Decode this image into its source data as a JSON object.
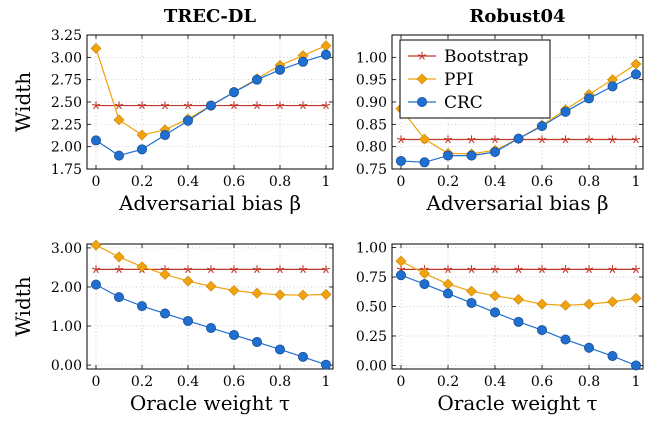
{
  "colors": {
    "bootstrap": "#c0392b",
    "ppi": "#f0a30a",
    "crc": "#1f6fd1",
    "grid": "#b9b9b9"
  },
  "legend": {
    "entries": [
      {
        "label": "Bootstrap",
        "series": "bootstrap",
        "marker": "star"
      },
      {
        "label": "PPI",
        "series": "ppi",
        "marker": "diamond"
      },
      {
        "label": "CRC",
        "series": "crc",
        "marker": "circle"
      }
    ]
  },
  "chart_data": [
    {
      "type": "line",
      "title": "TREC-DL",
      "xlabel": "Adversarial bias β",
      "ylabel": "Width",
      "xlim": [
        0,
        1
      ],
      "ylim": [
        1.75,
        3.25
      ],
      "xticks": [
        0,
        0.2,
        0.4,
        0.6,
        0.8,
        1
      ],
      "xtick_labels": [
        "0",
        "0.2",
        "0.4",
        "0.6",
        "0.8",
        "1"
      ],
      "yticks": [
        1.75,
        2.0,
        2.25,
        2.5,
        2.75,
        3.0,
        3.25
      ],
      "ytick_labels": [
        "1.75",
        "2.00",
        "2.25",
        "2.50",
        "2.75",
        "3.00",
        "3.25"
      ],
      "grid": "dotted",
      "x": [
        0,
        0.1,
        0.2,
        0.3,
        0.4,
        0.5,
        0.6,
        0.7,
        0.8,
        0.9,
        1.0
      ],
      "series": [
        {
          "name": "Bootstrap",
          "key": "bootstrap",
          "marker": "star",
          "values": [
            2.46,
            2.46,
            2.46,
            2.46,
            2.46,
            2.46,
            2.46,
            2.46,
            2.46,
            2.46,
            2.46
          ]
        },
        {
          "name": "PPI",
          "key": "ppi",
          "marker": "diamond",
          "values": [
            3.1,
            2.3,
            2.13,
            2.19,
            2.31,
            2.46,
            2.61,
            2.76,
            2.91,
            3.02,
            3.13
          ]
        },
        {
          "name": "CRC",
          "key": "crc",
          "marker": "circle",
          "values": [
            2.07,
            1.9,
            1.97,
            2.13,
            2.29,
            2.46,
            2.61,
            2.75,
            2.86,
            2.95,
            3.03
          ]
        }
      ]
    },
    {
      "type": "line",
      "title": "Robust04",
      "xlabel": "Adversarial bias β",
      "ylabel": "",
      "xlim": [
        0,
        1
      ],
      "ylim": [
        0.75,
        1.05
      ],
      "xticks": [
        0,
        0.2,
        0.4,
        0.6,
        0.8,
        1
      ],
      "xtick_labels": [
        "0",
        "0.2",
        "0.4",
        "0.6",
        "0.8",
        "1"
      ],
      "yticks": [
        0.75,
        0.8,
        0.85,
        0.9,
        0.95,
        1.0
      ],
      "ytick_labels": [
        "0.75",
        "0.80",
        "0.85",
        "0.90",
        "0.95",
        "1.00"
      ],
      "grid": "dotted",
      "legend": "top-left",
      "x": [
        0,
        0.1,
        0.2,
        0.3,
        0.4,
        0.5,
        0.6,
        0.7,
        0.8,
        0.9,
        1.0
      ],
      "series": [
        {
          "name": "Bootstrap",
          "key": "bootstrap",
          "marker": "star",
          "values": [
            0.816,
            0.816,
            0.816,
            0.816,
            0.816,
            0.816,
            0.816,
            0.816,
            0.816,
            0.816,
            0.816
          ]
        },
        {
          "name": "PPI",
          "key": "ppi",
          "marker": "diamond",
          "values": [
            0.885,
            0.817,
            0.785,
            0.784,
            0.792,
            0.818,
            0.848,
            0.883,
            0.917,
            0.95,
            0.985
          ]
        },
        {
          "name": "CRC",
          "key": "crc",
          "marker": "circle",
          "values": [
            0.768,
            0.765,
            0.78,
            0.78,
            0.788,
            0.818,
            0.846,
            0.878,
            0.908,
            0.935,
            0.962
          ]
        }
      ]
    },
    {
      "type": "line",
      "title": "",
      "xlabel": "Oracle weight τ",
      "ylabel": "Width",
      "xlim": [
        0,
        1
      ],
      "ylim": [
        -0.1,
        3.1
      ],
      "xticks": [
        0,
        0.2,
        0.4,
        0.6,
        0.8,
        1
      ],
      "xtick_labels": [
        "0",
        "0.2",
        "0.4",
        "0.6",
        "0.8",
        "1"
      ],
      "yticks": [
        0,
        1,
        2,
        3
      ],
      "ytick_labels": [
        "0.00",
        "1.00",
        "2.00",
        "3.00"
      ],
      "grid": "dotted",
      "x": [
        0,
        0.1,
        0.2,
        0.3,
        0.4,
        0.5,
        0.6,
        0.7,
        0.8,
        0.9,
        1.0
      ],
      "series": [
        {
          "name": "Bootstrap",
          "key": "bootstrap",
          "marker": "star",
          "values": [
            2.45,
            2.45,
            2.45,
            2.45,
            2.45,
            2.45,
            2.45,
            2.45,
            2.45,
            2.45,
            2.45
          ]
        },
        {
          "name": "PPI",
          "key": "ppi",
          "marker": "diamond",
          "values": [
            3.07,
            2.77,
            2.52,
            2.32,
            2.15,
            2.02,
            1.91,
            1.84,
            1.8,
            1.79,
            1.81
          ]
        },
        {
          "name": "CRC",
          "key": "crc",
          "marker": "circle",
          "values": [
            2.06,
            1.74,
            1.51,
            1.32,
            1.13,
            0.95,
            0.77,
            0.59,
            0.4,
            0.21,
            0.01
          ]
        }
      ]
    },
    {
      "type": "line",
      "title": "",
      "xlabel": "Oracle weight τ",
      "ylabel": "",
      "xlim": [
        0,
        1
      ],
      "ylim": [
        -0.03,
        1.03
      ],
      "xticks": [
        0,
        0.2,
        0.4,
        0.6,
        0.8,
        1
      ],
      "xtick_labels": [
        "0",
        "0.2",
        "0.4",
        "0.6",
        "0.8",
        "1"
      ],
      "yticks": [
        0,
        0.25,
        0.5,
        0.75,
        1.0
      ],
      "ytick_labels": [
        "0.00",
        "0.25",
        "0.50",
        "0.75",
        "1.00"
      ],
      "grid": "dotted",
      "x": [
        0,
        0.1,
        0.2,
        0.3,
        0.4,
        0.5,
        0.6,
        0.7,
        0.8,
        0.9,
        1.0
      ],
      "series": [
        {
          "name": "Bootstrap",
          "key": "bootstrap",
          "marker": "star",
          "values": [
            0.815,
            0.815,
            0.815,
            0.815,
            0.815,
            0.815,
            0.815,
            0.815,
            0.815,
            0.815,
            0.815
          ]
        },
        {
          "name": "PPI",
          "key": "ppi",
          "marker": "diamond",
          "values": [
            0.885,
            0.78,
            0.69,
            0.63,
            0.59,
            0.56,
            0.52,
            0.51,
            0.52,
            0.54,
            0.57
          ]
        },
        {
          "name": "CRC",
          "key": "crc",
          "marker": "circle",
          "values": [
            0.765,
            0.69,
            0.61,
            0.53,
            0.45,
            0.37,
            0.3,
            0.22,
            0.15,
            0.08,
            0.0
          ]
        }
      ]
    }
  ]
}
